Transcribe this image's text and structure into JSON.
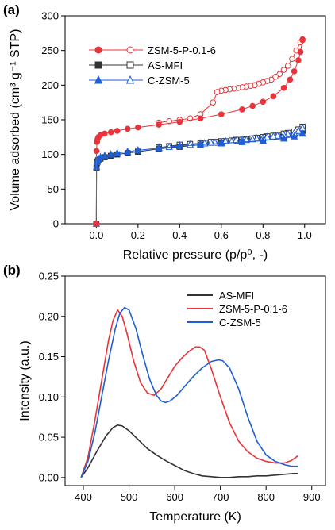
{
  "chart_data": [
    {
      "panel": "(a)",
      "type": "scatter",
      "xlabel": "Relative pressure (p/p⁰, -)",
      "ylabel": "Volume adsorbed (cm³ g⁻¹ STP)",
      "xlim": [
        -0.15,
        1.1
      ],
      "ylim": [
        0,
        300
      ],
      "xticks": [
        "0.0",
        "0.2",
        "0.4",
        "0.6",
        "0.8",
        "1.0"
      ],
      "yticks": [
        "0",
        "50",
        "100",
        "150",
        "200",
        "250",
        "300"
      ],
      "legend_position": "top-left",
      "grid": false,
      "series": [
        {
          "name": "ZSM-5-P-0.1-6",
          "color": "#e8343a",
          "adsorption": {
            "x": [
              0.0,
              0.001,
              0.003,
              0.006,
              0.01,
              0.02,
              0.04,
              0.07,
              0.1,
              0.15,
              0.2,
              0.3,
              0.4,
              0.5,
              0.6,
              0.7,
              0.75,
              0.8,
              0.85,
              0.9,
              0.93,
              0.95,
              0.97,
              0.98,
              0.99
            ],
            "y": [
              0,
              105,
              118,
              122,
              125,
              128,
              130,
              132,
              134,
              137,
              139,
              143,
              147,
              152,
              158,
              165,
              170,
              176,
              184,
              196,
              208,
              220,
              236,
              248,
              265
            ]
          },
          "desorption": {
            "x": [
              0.99,
              0.98,
              0.96,
              0.94,
              0.92,
              0.9,
              0.88,
              0.86,
              0.84,
              0.82,
              0.8,
              0.78,
              0.76,
              0.74,
              0.72,
              0.7,
              0.68,
              0.66,
              0.64,
              0.62,
              0.6,
              0.58,
              0.56,
              0.5,
              0.45,
              0.4,
              0.35,
              0.3
            ],
            "y": [
              266,
              262,
              250,
              238,
              228,
              222,
              216,
              212,
              208,
              206,
              204,
              202,
              200,
              199,
              198,
              197,
              196,
              195,
              194,
              193,
              192,
              190,
              175,
              158,
              152,
              150,
              148,
              146
            ]
          }
        },
        {
          "name": "AS-MFI",
          "color": "#333333",
          "adsorption": {
            "x": [
              0.0,
              0.001,
              0.003,
              0.006,
              0.01,
              0.02,
              0.04,
              0.07,
              0.1,
              0.15,
              0.2,
              0.3,
              0.4,
              0.5,
              0.6,
              0.7,
              0.8,
              0.9,
              0.95,
              0.99
            ],
            "y": [
              0,
              80,
              88,
              90,
              92,
              94,
              96,
              98,
              100,
              102,
              104,
              108,
              111,
              114,
              116,
              118,
              121,
              125,
              128,
              134
            ]
          },
          "desorption": {
            "x": [
              0.99,
              0.97,
              0.95,
              0.92,
              0.9,
              0.87,
              0.85,
              0.82,
              0.8,
              0.77,
              0.75,
              0.72,
              0.7,
              0.67,
              0.65,
              0.62,
              0.6,
              0.57,
              0.55,
              0.52,
              0.5,
              0.45,
              0.4,
              0.35,
              0.3
            ],
            "y": [
              140,
              136,
              133,
              131,
              130,
              128,
              127,
              126,
              125,
              124,
              123,
              122,
              121,
              121,
              120,
              119,
              119,
              118,
              118,
              117,
              116,
              115,
              114,
              112,
              110
            ]
          }
        },
        {
          "name": "C-ZSM-5",
          "color": "#1f5fd6",
          "adsorption": {
            "x": [
              0.0,
              0.001,
              0.003,
              0.006,
              0.01,
              0.02,
              0.04,
              0.07,
              0.1,
              0.15,
              0.2,
              0.3,
              0.4,
              0.5,
              0.6,
              0.7,
              0.8,
              0.9,
              0.95,
              0.99
            ],
            "y": [
              0,
              82,
              89,
              92,
              94,
              96,
              98,
              100,
              102,
              104,
              106,
              109,
              112,
              114,
              116,
              118,
              120,
              123,
              126,
              130
            ]
          },
          "desorption": {
            "x": [
              0.99,
              0.97,
              0.95,
              0.92,
              0.9,
              0.87,
              0.85,
              0.82,
              0.8,
              0.77,
              0.75,
              0.72,
              0.7,
              0.67,
              0.65,
              0.62,
              0.6,
              0.57,
              0.55,
              0.52,
              0.5,
              0.45,
              0.4,
              0.35,
              0.3
            ],
            "y": [
              138,
              134,
              131,
              129,
              128,
              127,
              126,
              125,
              124,
              123,
              122,
              121,
              121,
              120,
              119,
              119,
              118,
              117,
              117,
              116,
              116,
              114,
              113,
              111,
              110
            ]
          }
        }
      ]
    },
    {
      "panel": "(b)",
      "type": "line",
      "xlabel": "Temperature (K)",
      "ylabel": "Intensity (a.u.)",
      "xlim": [
        360,
        930
      ],
      "ylim": [
        -0.01,
        0.25
      ],
      "xticks": [
        "400",
        "500",
        "600",
        "700",
        "800",
        "900"
      ],
      "yticks": [
        "0.00",
        "0.05",
        "0.10",
        "0.15",
        "0.20",
        "0.25"
      ],
      "legend_position": "top-right",
      "grid": false,
      "series": [
        {
          "name": "AS-MFI",
          "color": "#333333",
          "x": [
            395,
            410,
            430,
            450,
            465,
            475,
            485,
            500,
            520,
            540,
            560,
            580,
            600,
            620,
            640,
            660,
            680,
            700,
            720,
            740,
            760,
            780,
            800,
            820,
            840,
            860,
            870
          ],
          "y": [
            0.0,
            0.012,
            0.033,
            0.052,
            0.062,
            0.065,
            0.064,
            0.058,
            0.047,
            0.036,
            0.028,
            0.021,
            0.015,
            0.009,
            0.005,
            0.002,
            0.001,
            0.0,
            0.0,
            0.001,
            0.001,
            0.002,
            0.002,
            0.003,
            0.004,
            0.005,
            0.005
          ]
        },
        {
          "name": "ZSM-5-P-0.1-6",
          "color": "#e8343a",
          "x": [
            395,
            410,
            425,
            440,
            455,
            465,
            475,
            485,
            495,
            510,
            525,
            540,
            555,
            570,
            585,
            600,
            615,
            630,
            645,
            655,
            665,
            680,
            700,
            720,
            740,
            760,
            780,
            800,
            820,
            840,
            855,
            870
          ],
          "y": [
            0.0,
            0.025,
            0.07,
            0.12,
            0.17,
            0.195,
            0.208,
            0.2,
            0.18,
            0.145,
            0.118,
            0.105,
            0.102,
            0.11,
            0.124,
            0.138,
            0.148,
            0.156,
            0.162,
            0.162,
            0.158,
            0.135,
            0.1,
            0.068,
            0.045,
            0.032,
            0.024,
            0.02,
            0.018,
            0.018,
            0.021,
            0.027
          ]
        },
        {
          "name": "C-ZSM-5",
          "color": "#1f5fd6",
          "x": [
            395,
            410,
            425,
            440,
            455,
            470,
            480,
            490,
            500,
            515,
            530,
            545,
            560,
            570,
            580,
            590,
            605,
            620,
            640,
            660,
            680,
            695,
            705,
            720,
            740,
            760,
            780,
            800,
            820,
            840,
            855,
            870
          ],
          "y": [
            0.0,
            0.02,
            0.055,
            0.1,
            0.145,
            0.185,
            0.204,
            0.211,
            0.208,
            0.185,
            0.152,
            0.122,
            0.102,
            0.095,
            0.093,
            0.095,
            0.102,
            0.112,
            0.125,
            0.136,
            0.144,
            0.146,
            0.145,
            0.136,
            0.11,
            0.075,
            0.045,
            0.028,
            0.02,
            0.016,
            0.014,
            0.014
          ]
        }
      ]
    }
  ]
}
